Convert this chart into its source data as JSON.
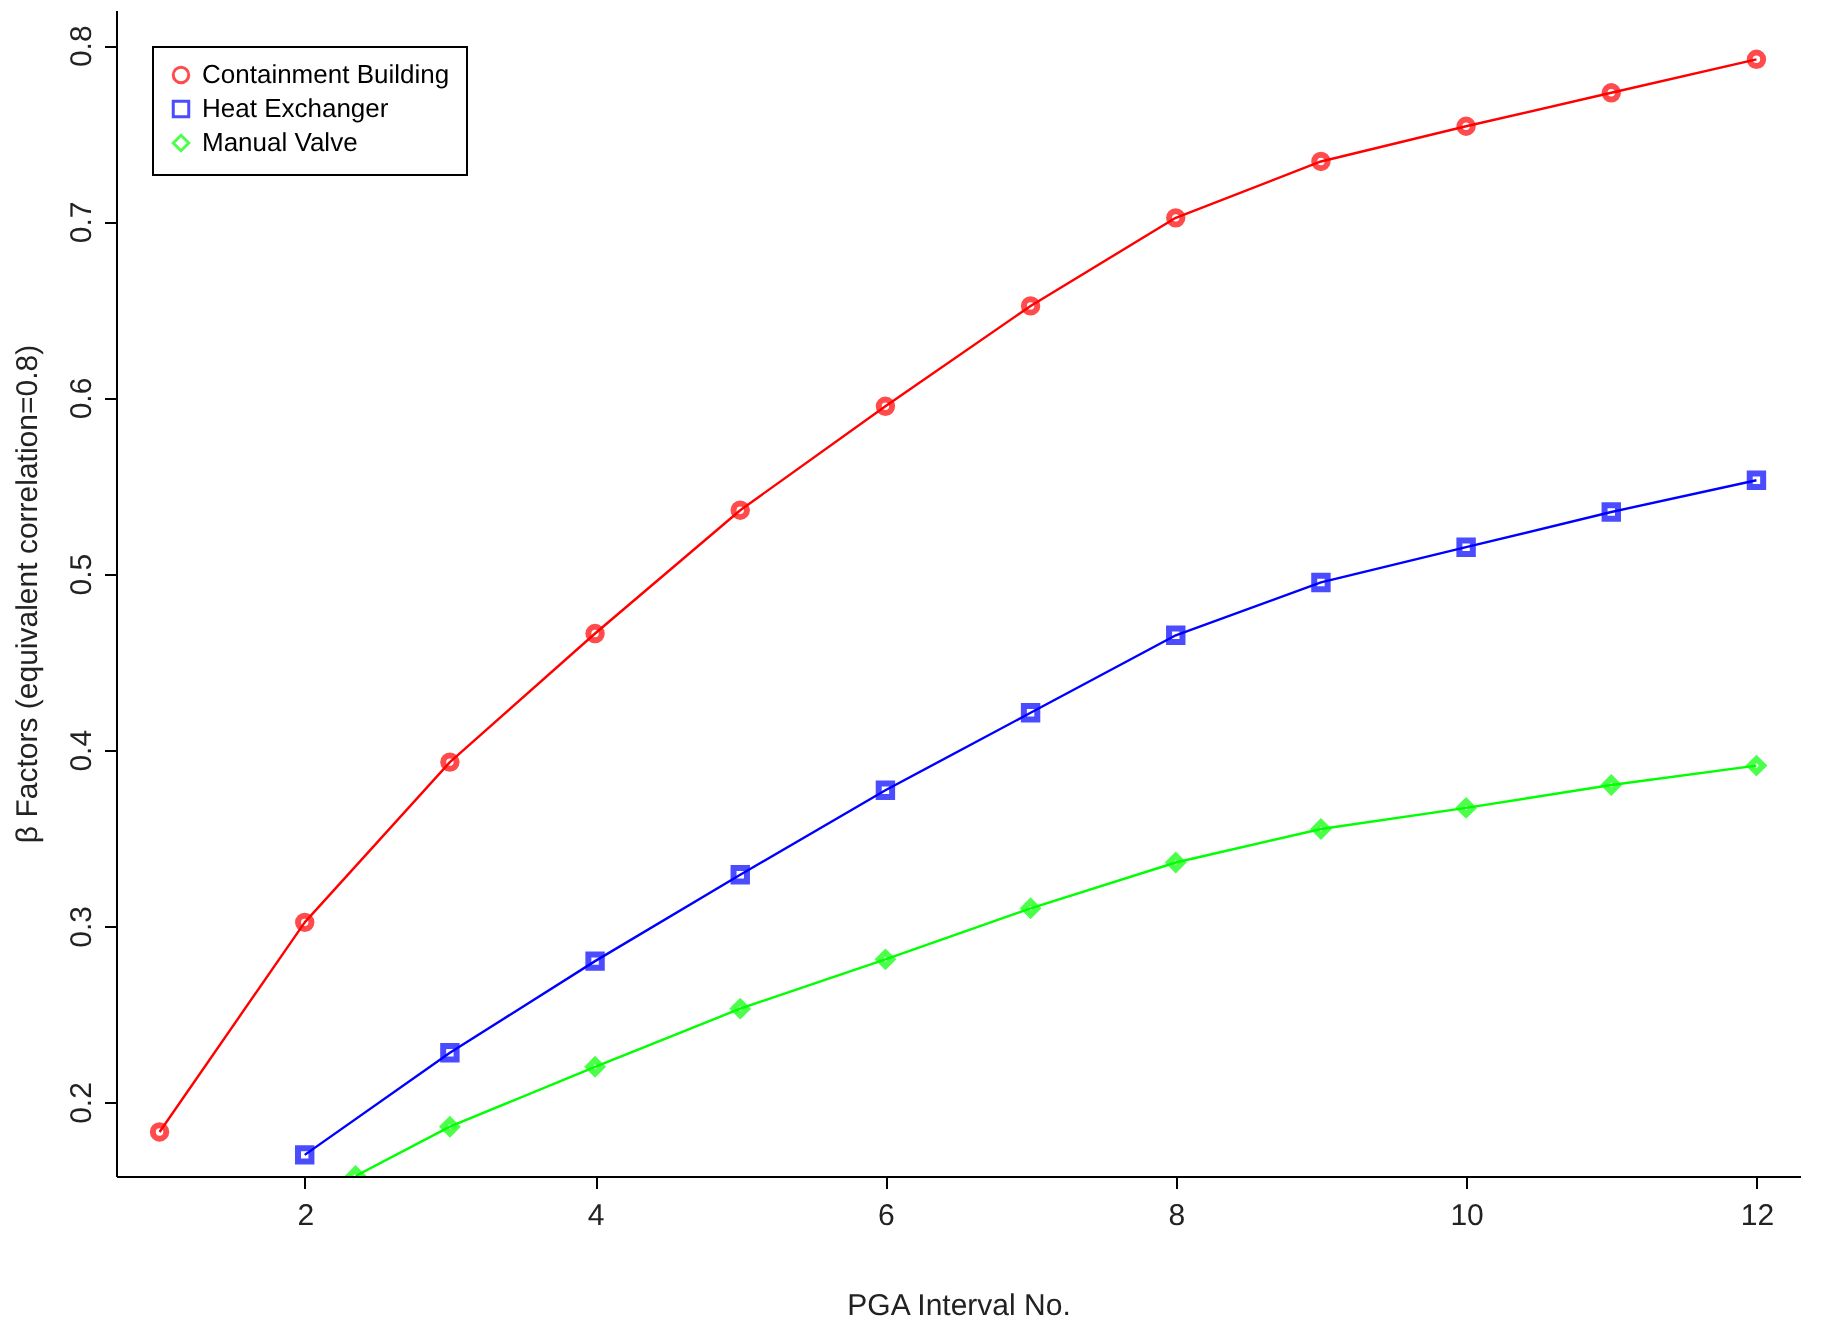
{
  "chart_data": {
    "type": "line",
    "xlabel": "PGA Interval No.",
    "ylabel": "β Factors (equivalent correlation=0.8)",
    "xlim": [
      0.7,
      12.3
    ],
    "xticks": [
      2,
      4,
      6,
      8,
      10,
      12
    ],
    "ylim": [
      0.158,
      0.82
    ],
    "yticks": [
      0.2,
      0.3,
      0.4,
      0.5,
      0.6,
      0.7,
      0.8
    ],
    "grid": false,
    "legend": "top left",
    "series": [
      {
        "name": "Containment Building",
        "color": "#ff0000",
        "marker": "circle",
        "x": [
          1,
          2,
          3,
          4,
          5,
          6,
          7,
          8,
          9,
          10,
          11,
          12
        ],
        "values": [
          0.183,
          0.302,
          0.393,
          0.466,
          0.536,
          0.595,
          0.652,
          0.702,
          0.734,
          0.754,
          0.773,
          0.792
        ]
      },
      {
        "name": "Heat Exchanger",
        "color": "#0000ff",
        "marker": "square",
        "x": [
          2,
          3,
          4,
          5,
          6,
          7,
          8,
          9,
          10,
          11,
          12
        ],
        "values": [
          0.17,
          0.228,
          0.28,
          0.329,
          0.377,
          0.421,
          0.465,
          0.495,
          0.515,
          0.535,
          0.553
        ]
      },
      {
        "name": "Manual Valve",
        "color": "#00ff00",
        "marker": "diamond",
        "x": [
          2.35,
          3,
          4,
          5,
          6,
          7,
          8,
          9,
          10,
          11,
          12
        ],
        "values": [
          0.158,
          0.186,
          0.22,
          0.253,
          0.281,
          0.31,
          0.336,
          0.355,
          0.367,
          0.38,
          0.391
        ]
      }
    ]
  }
}
